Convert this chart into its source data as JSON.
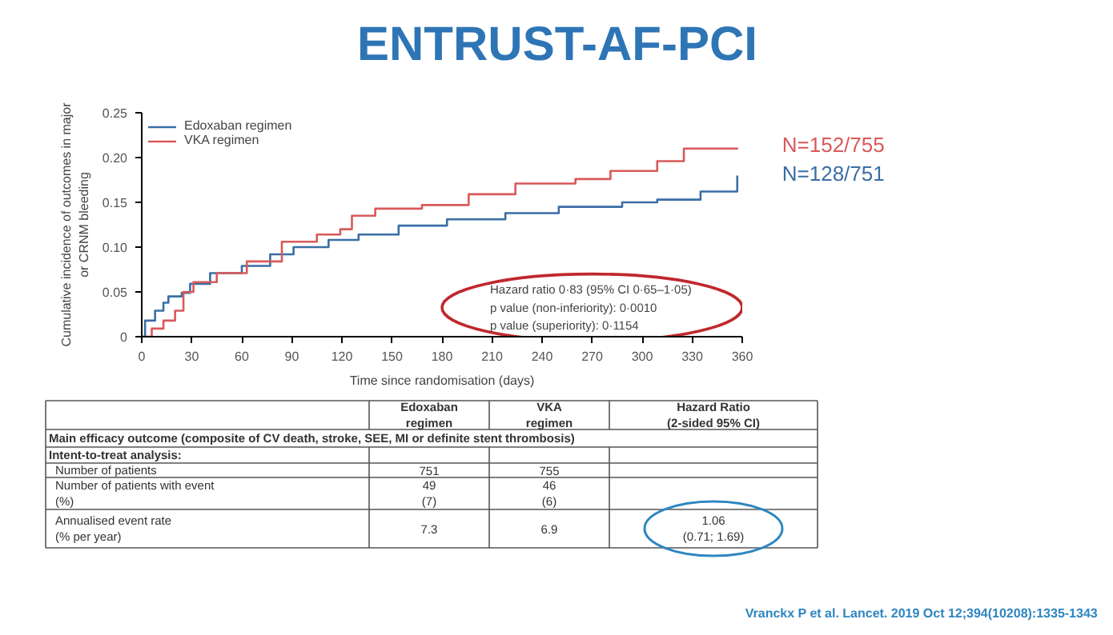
{
  "chart_data": [
    {
      "type": "step",
      "title": "ENTRUST-AF-PCI",
      "xlabel": "Time since randomisation (days)",
      "ylabel": "Cumulative incidence of outcomes in major\nor CRNM bleeding",
      "xlim": [
        0,
        360
      ],
      "xticks": [
        0,
        30,
        60,
        90,
        120,
        150,
        180,
        210,
        240,
        270,
        300,
        330,
        360
      ],
      "ylim": [
        0,
        0.25
      ],
      "yticks": [
        0,
        0.05,
        {
          "value": 0.1,
          "label": "0.10"
        },
        0.15,
        {
          "value": 0.2,
          "label": "0.20"
        },
        0.25
      ],
      "grid": false,
      "legend": "top left",
      "series": [
        {
          "name": "Edoxaban regimen",
          "color": "#3a6ea5",
          "x": [
            0,
            2,
            8,
            13,
            16,
            24,
            29,
            41,
            60,
            77,
            91,
            112,
            130,
            154,
            183,
            218,
            250,
            288,
            309,
            335,
            357
          ],
          "values": [
            0,
            0.018,
            0.029,
            0.038,
            0.045,
            0.049,
            0.059,
            0.071,
            0.079,
            0.092,
            0.1,
            0.108,
            0.114,
            0.124,
            0.131,
            0.138,
            0.145,
            0.15,
            0.153,
            0.162,
            0.18
          ]
        },
        {
          "name": "VKA regimen",
          "color": "#d9595a",
          "x": [
            0,
            6,
            13,
            20,
            25,
            31,
            45,
            63,
            84,
            105,
            119,
            126,
            140,
            168,
            196,
            224,
            260,
            281,
            309,
            325,
            357
          ],
          "values": [
            0,
            0.009,
            0.018,
            0.029,
            0.05,
            0.061,
            0.071,
            0.084,
            0.106,
            0.114,
            0.12,
            0.135,
            0.143,
            0.147,
            0.159,
            0.171,
            0.176,
            0.185,
            0.196,
            0.21,
            0.211
          ]
        }
      ],
      "annotations": [
        {
          "text": "N=152/755",
          "x": 357,
          "y": 0.211
        },
        {
          "text": "N=128/751",
          "x": 357,
          "y": 0.18
        },
        "Hazard ratio 0·83 (95% CI 0·65–1·05)\np value (non-inferiority): 0·0010\np value (superiority): 0·1154"
      ]
    },
    {
      "type": "other",
      "categories": [
        null,
        "Edoxaban\nregimen",
        "VKA\nregimen",
        "Hazard Ratio\n(2-sided 95% CI)"
      ],
      "y_categories": [
        "Main efficacy outcome (composite of CV death, stroke, SEE, MI or definite stent thrombosis)",
        "Intent-to-treat analysis:",
        "Number of patients",
        "Number of patients with event\n(%)",
        "Annualised event rate\n(% per year)"
      ],
      "cell_labels": [
        [
          null,
          null,
          null
        ],
        [
          null,
          null,
          null
        ],
        [
          "751",
          "755",
          null
        ],
        [
          "49\n(7)",
          "46\n(6)",
          null
        ],
        [
          "7.3",
          "6.9",
          "1.06\n(0.71; 1.69)"
        ]
      ],
      "annotations": [
        "Vranckx P et al. Lancet. 2019 Oct 12;394(10208):1335-1343"
      ]
    }
  ]
}
